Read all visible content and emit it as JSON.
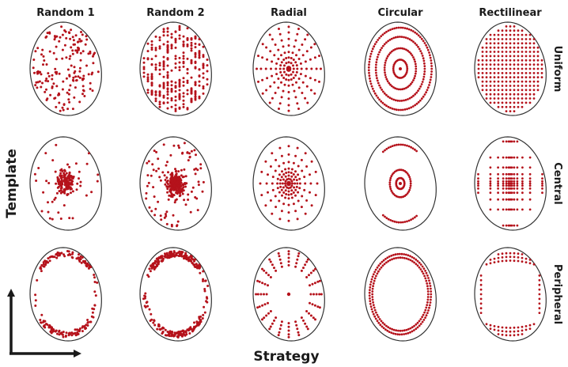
{
  "columns": [
    "Random 1",
    "Random 2",
    "Radial",
    "Circular",
    "Rectilinear"
  ],
  "rows": [
    "Uniform",
    "Central",
    "Peripheral"
  ],
  "axes": {
    "vertical_label": "Template",
    "horizontal_label": "Strategy"
  },
  "colors": {
    "dot": "#b5121b",
    "outline": "#333333",
    "text": "#1a1a1a"
  }
}
